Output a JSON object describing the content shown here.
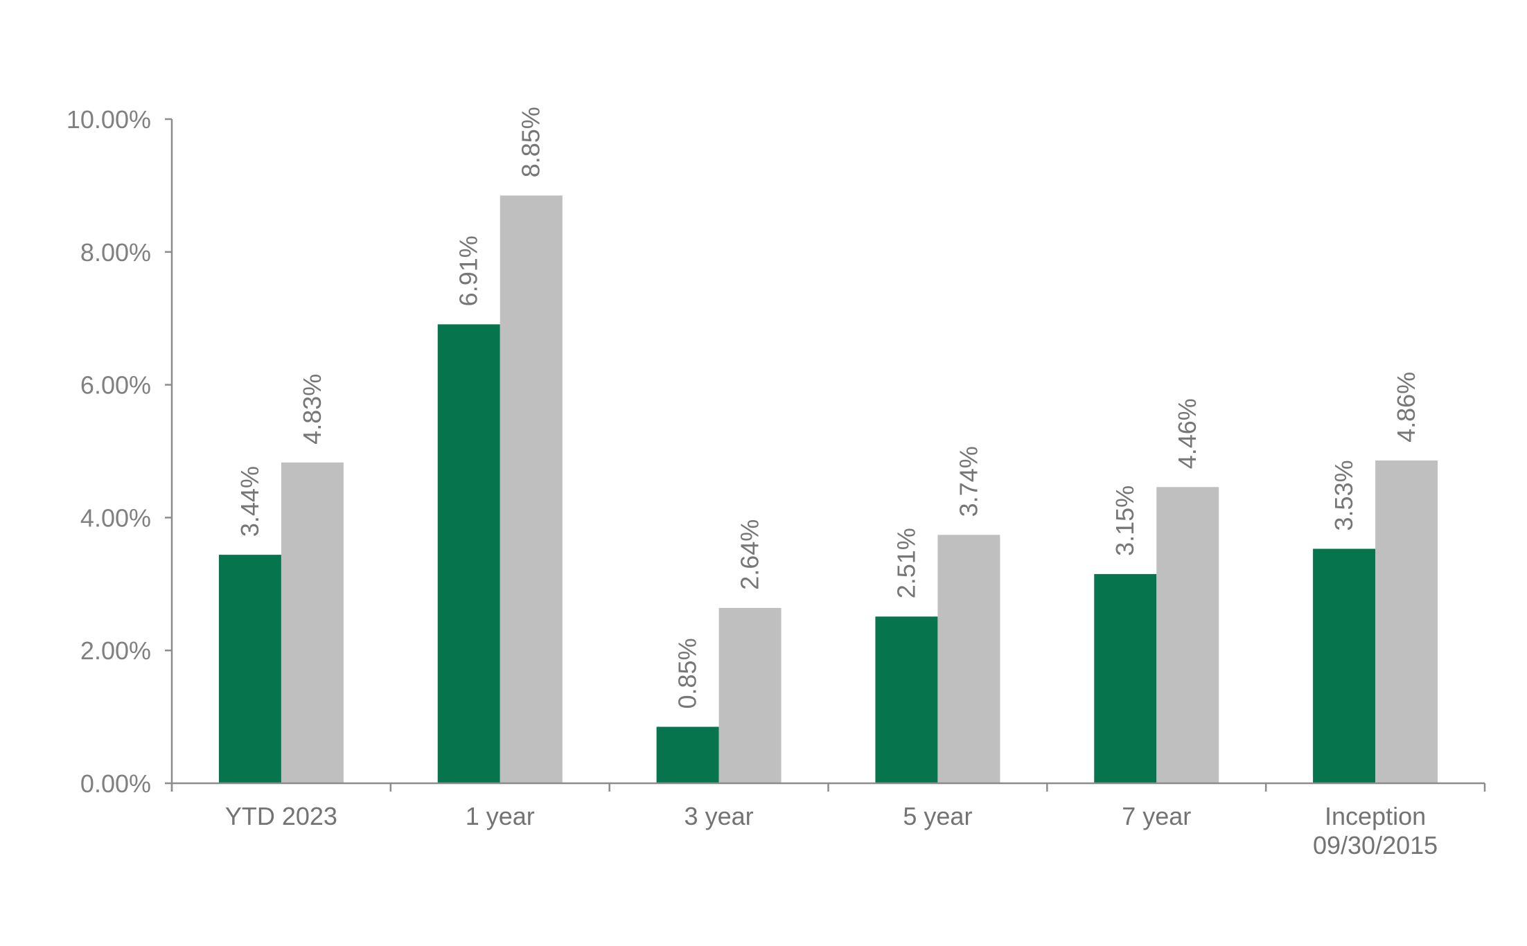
{
  "colors": {
    "series_1": "#06754e",
    "series_2": "#bfbfbf",
    "axis": "#8c8c8c",
    "text": "#767676",
    "background": "#ffffff"
  },
  "chart_data": {
    "type": "bar",
    "title": "",
    "xlabel": "",
    "ylabel": "",
    "categories": [
      [
        "YTD 2023"
      ],
      [
        "1 year"
      ],
      [
        "3 year"
      ],
      [
        "5 year"
      ],
      [
        "7 year"
      ],
      [
        "Inception",
        "09/30/2015"
      ]
    ],
    "series": [
      {
        "color": "#06754e",
        "values": [
          3.44,
          6.91,
          0.85,
          2.51,
          3.15,
          3.53
        ],
        "labels": [
          "3.44%",
          "6.91%",
          "0.85%",
          "2.51%",
          "3.15%",
          "3.53%"
        ]
      },
      {
        "color": "#bfbfbf",
        "values": [
          4.83,
          8.85,
          2.64,
          3.74,
          4.46,
          4.86
        ],
        "labels": [
          "4.83%",
          "8.85%",
          "2.64%",
          "3.74%",
          "4.46%",
          "4.86%"
        ]
      }
    ],
    "ylim": [
      0,
      10
    ],
    "yticks": [
      0,
      2,
      4,
      6,
      8,
      10
    ],
    "ytick_labels": [
      "0.00%",
      "2.00%",
      "4.00%",
      "6.00%",
      "8.00%",
      "10.00%"
    ],
    "grid": false,
    "legend": "none",
    "data_labels": "rotated-vertical-above-bars"
  }
}
